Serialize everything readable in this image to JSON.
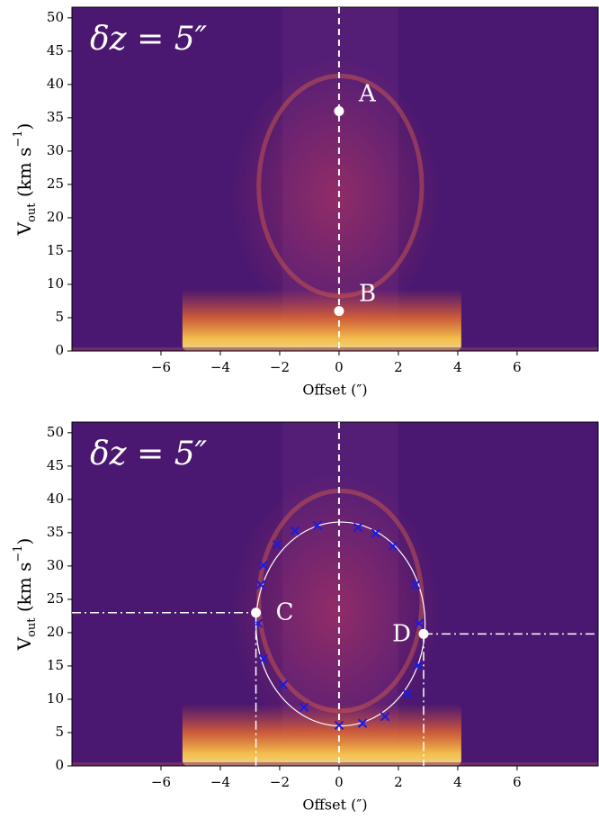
{
  "chart_data": [
    {
      "type": "scatter",
      "annotation": "δz = 5″",
      "xlabel": "Offset (″)",
      "ylabel": [
        "V",
        "out",
        " (km s",
        "−1",
        ")"
      ],
      "xlim": [
        -9,
        8.73
      ],
      "ylim": [
        0,
        51.6
      ],
      "xticks": [
        {
          "value": -6,
          "label": "−6"
        },
        {
          "value": -4,
          "label": "−4"
        },
        {
          "value": -2,
          "label": "−2"
        },
        0,
        2,
        4,
        6
      ],
      "yticks": [
        0,
        5,
        10,
        15,
        20,
        25,
        30,
        35,
        40,
        45,
        50
      ],
      "vline": 0,
      "markers": {
        "labels": [
          "A",
          "B"
        ],
        "x": [
          0,
          0
        ],
        "y": [
          36,
          6
        ],
        "color": "#ffffff"
      }
    },
    {
      "type": "scatter",
      "annotation": "δz = 5″",
      "xlabel": "Offset (″)",
      "ylabel": [
        "V",
        "out",
        " (km s",
        "−1",
        ")"
      ],
      "xlim": [
        -9,
        8.73
      ],
      "ylim": [
        0,
        51.6
      ],
      "xticks": [
        {
          "value": -6,
          "label": "−6"
        },
        {
          "value": -4,
          "label": "−4"
        },
        {
          "value": -2,
          "label": "−2"
        },
        0,
        2,
        4,
        6
      ],
      "yticks": [
        0,
        5,
        10,
        15,
        20,
        25,
        30,
        35,
        40,
        45,
        50
      ],
      "vline": 0,
      "guides": true,
      "markers": {
        "labels": [
          "C",
          "D"
        ],
        "x": [
          -2.8,
          2.85
        ],
        "y": [
          23,
          19.8
        ],
        "color": "#ffffff"
      },
      "crosses": {
        "x": [
          -2.64,
          -2.55,
          -2.09,
          -1.48,
          -0.73,
          0.64,
          1.24,
          1.82,
          2.58,
          2.7,
          2.67,
          2.3,
          1.55,
          0.79,
          0,
          -1.18,
          -1.88,
          -2.55,
          -2.73
        ],
        "y": [
          27.2,
          30.1,
          33.2,
          35.3,
          36.1,
          35.8,
          34.9,
          33.0,
          27.2,
          21.4,
          15.1,
          10.8,
          7.4,
          6.4,
          6.1,
          8.8,
          12.2,
          16.1,
          21.4
        ],
        "color": "#1a1ae6"
      },
      "ellipse": {
        "cx": 0.05,
        "cy": 21.3,
        "rx": 2.85,
        "ry": 15.3,
        "color": "#ffffff"
      }
    }
  ]
}
